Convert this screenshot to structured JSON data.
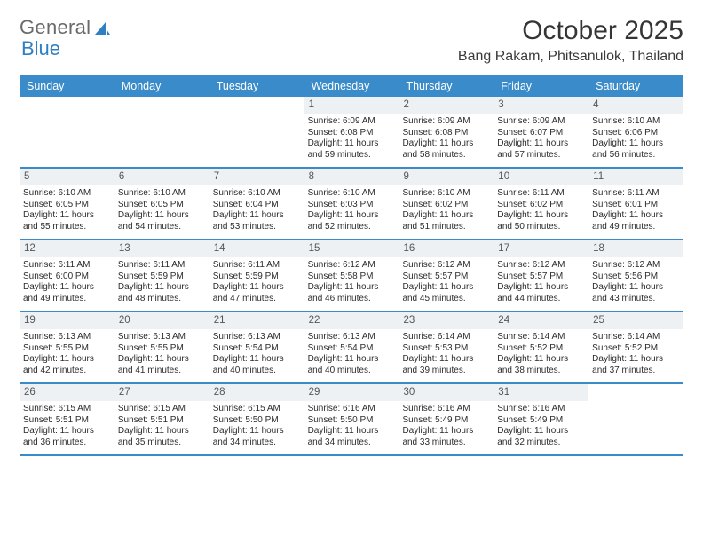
{
  "brand": {
    "word1": "General",
    "word2": "Blue"
  },
  "title": "October 2025",
  "location": "Bang Rakam, Phitsanulok, Thailand",
  "weekdays": [
    "Sunday",
    "Monday",
    "Tuesday",
    "Wednesday",
    "Thursday",
    "Friday",
    "Saturday"
  ],
  "colors": {
    "header_bg": "#3a8bc9",
    "header_text": "#ffffff",
    "daynum_bg": "#eef1f4",
    "border": "#3a8bc9",
    "page_bg": "#ffffff",
    "text": "#333333",
    "title_text": "#353535"
  },
  "weeks": [
    [
      {
        "n": "",
        "sunrise": "",
        "sunset": "",
        "daylight": ""
      },
      {
        "n": "",
        "sunrise": "",
        "sunset": "",
        "daylight": ""
      },
      {
        "n": "",
        "sunrise": "",
        "sunset": "",
        "daylight": ""
      },
      {
        "n": "1",
        "sunrise": "Sunrise: 6:09 AM",
        "sunset": "Sunset: 6:08 PM",
        "daylight": "Daylight: 11 hours and 59 minutes."
      },
      {
        "n": "2",
        "sunrise": "Sunrise: 6:09 AM",
        "sunset": "Sunset: 6:08 PM",
        "daylight": "Daylight: 11 hours and 58 minutes."
      },
      {
        "n": "3",
        "sunrise": "Sunrise: 6:09 AM",
        "sunset": "Sunset: 6:07 PM",
        "daylight": "Daylight: 11 hours and 57 minutes."
      },
      {
        "n": "4",
        "sunrise": "Sunrise: 6:10 AM",
        "sunset": "Sunset: 6:06 PM",
        "daylight": "Daylight: 11 hours and 56 minutes."
      }
    ],
    [
      {
        "n": "5",
        "sunrise": "Sunrise: 6:10 AM",
        "sunset": "Sunset: 6:05 PM",
        "daylight": "Daylight: 11 hours and 55 minutes."
      },
      {
        "n": "6",
        "sunrise": "Sunrise: 6:10 AM",
        "sunset": "Sunset: 6:05 PM",
        "daylight": "Daylight: 11 hours and 54 minutes."
      },
      {
        "n": "7",
        "sunrise": "Sunrise: 6:10 AM",
        "sunset": "Sunset: 6:04 PM",
        "daylight": "Daylight: 11 hours and 53 minutes."
      },
      {
        "n": "8",
        "sunrise": "Sunrise: 6:10 AM",
        "sunset": "Sunset: 6:03 PM",
        "daylight": "Daylight: 11 hours and 52 minutes."
      },
      {
        "n": "9",
        "sunrise": "Sunrise: 6:10 AM",
        "sunset": "Sunset: 6:02 PM",
        "daylight": "Daylight: 11 hours and 51 minutes."
      },
      {
        "n": "10",
        "sunrise": "Sunrise: 6:11 AM",
        "sunset": "Sunset: 6:02 PM",
        "daylight": "Daylight: 11 hours and 50 minutes."
      },
      {
        "n": "11",
        "sunrise": "Sunrise: 6:11 AM",
        "sunset": "Sunset: 6:01 PM",
        "daylight": "Daylight: 11 hours and 49 minutes."
      }
    ],
    [
      {
        "n": "12",
        "sunrise": "Sunrise: 6:11 AM",
        "sunset": "Sunset: 6:00 PM",
        "daylight": "Daylight: 11 hours and 49 minutes."
      },
      {
        "n": "13",
        "sunrise": "Sunrise: 6:11 AM",
        "sunset": "Sunset: 5:59 PM",
        "daylight": "Daylight: 11 hours and 48 minutes."
      },
      {
        "n": "14",
        "sunrise": "Sunrise: 6:11 AM",
        "sunset": "Sunset: 5:59 PM",
        "daylight": "Daylight: 11 hours and 47 minutes."
      },
      {
        "n": "15",
        "sunrise": "Sunrise: 6:12 AM",
        "sunset": "Sunset: 5:58 PM",
        "daylight": "Daylight: 11 hours and 46 minutes."
      },
      {
        "n": "16",
        "sunrise": "Sunrise: 6:12 AM",
        "sunset": "Sunset: 5:57 PM",
        "daylight": "Daylight: 11 hours and 45 minutes."
      },
      {
        "n": "17",
        "sunrise": "Sunrise: 6:12 AM",
        "sunset": "Sunset: 5:57 PM",
        "daylight": "Daylight: 11 hours and 44 minutes."
      },
      {
        "n": "18",
        "sunrise": "Sunrise: 6:12 AM",
        "sunset": "Sunset: 5:56 PM",
        "daylight": "Daylight: 11 hours and 43 minutes."
      }
    ],
    [
      {
        "n": "19",
        "sunrise": "Sunrise: 6:13 AM",
        "sunset": "Sunset: 5:55 PM",
        "daylight": "Daylight: 11 hours and 42 minutes."
      },
      {
        "n": "20",
        "sunrise": "Sunrise: 6:13 AM",
        "sunset": "Sunset: 5:55 PM",
        "daylight": "Daylight: 11 hours and 41 minutes."
      },
      {
        "n": "21",
        "sunrise": "Sunrise: 6:13 AM",
        "sunset": "Sunset: 5:54 PM",
        "daylight": "Daylight: 11 hours and 40 minutes."
      },
      {
        "n": "22",
        "sunrise": "Sunrise: 6:13 AM",
        "sunset": "Sunset: 5:54 PM",
        "daylight": "Daylight: 11 hours and 40 minutes."
      },
      {
        "n": "23",
        "sunrise": "Sunrise: 6:14 AM",
        "sunset": "Sunset: 5:53 PM",
        "daylight": "Daylight: 11 hours and 39 minutes."
      },
      {
        "n": "24",
        "sunrise": "Sunrise: 6:14 AM",
        "sunset": "Sunset: 5:52 PM",
        "daylight": "Daylight: 11 hours and 38 minutes."
      },
      {
        "n": "25",
        "sunrise": "Sunrise: 6:14 AM",
        "sunset": "Sunset: 5:52 PM",
        "daylight": "Daylight: 11 hours and 37 minutes."
      }
    ],
    [
      {
        "n": "26",
        "sunrise": "Sunrise: 6:15 AM",
        "sunset": "Sunset: 5:51 PM",
        "daylight": "Daylight: 11 hours and 36 minutes."
      },
      {
        "n": "27",
        "sunrise": "Sunrise: 6:15 AM",
        "sunset": "Sunset: 5:51 PM",
        "daylight": "Daylight: 11 hours and 35 minutes."
      },
      {
        "n": "28",
        "sunrise": "Sunrise: 6:15 AM",
        "sunset": "Sunset: 5:50 PM",
        "daylight": "Daylight: 11 hours and 34 minutes."
      },
      {
        "n": "29",
        "sunrise": "Sunrise: 6:16 AM",
        "sunset": "Sunset: 5:50 PM",
        "daylight": "Daylight: 11 hours and 34 minutes."
      },
      {
        "n": "30",
        "sunrise": "Sunrise: 6:16 AM",
        "sunset": "Sunset: 5:49 PM",
        "daylight": "Daylight: 11 hours and 33 minutes."
      },
      {
        "n": "31",
        "sunrise": "Sunrise: 6:16 AM",
        "sunset": "Sunset: 5:49 PM",
        "daylight": "Daylight: 11 hours and 32 minutes."
      },
      {
        "n": "",
        "sunrise": "",
        "sunset": "",
        "daylight": ""
      }
    ]
  ]
}
